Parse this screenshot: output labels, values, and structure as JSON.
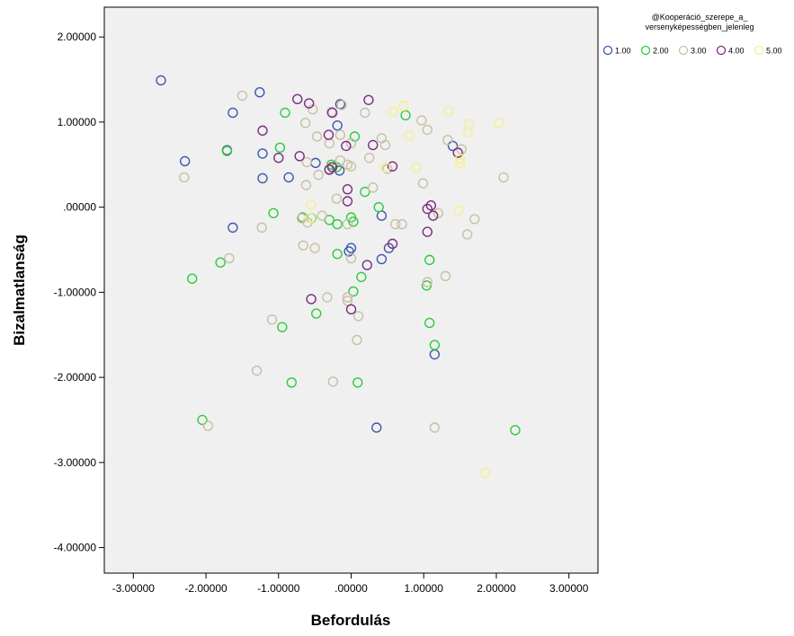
{
  "chart_data": {
    "type": "scatter",
    "xlabel": "Befordulás",
    "ylabel": "Bizalmatlanság",
    "xlim": [
      -3.4,
      3.4
    ],
    "ylim": [
      -4.3,
      2.35
    ],
    "xticks": [
      -3,
      -2,
      -1,
      0,
      1,
      2,
      3
    ],
    "xtick_labels": [
      "-3.00000",
      "-2.00000",
      "-1.00000",
      ".00000",
      "1.00000",
      "2.00000",
      "3.00000"
    ],
    "yticks": [
      2,
      1,
      0,
      -1,
      -2,
      -3,
      -4
    ],
    "ytick_labels": [
      "2.00000",
      "1.00000",
      ".00000",
      "-1.00000",
      "-2.00000",
      "-3.00000",
      "-4.00000"
    ],
    "grid": false,
    "background": "#f0f0f0",
    "legend": {
      "title_lines": [
        "@Kooperáció_szerepe_a_",
        "versenyképességben_jelenleg"
      ],
      "placement": "top-right"
    },
    "series": [
      {
        "name": "1.00",
        "color": "#3d58b0",
        "points": [
          [
            -2.62,
            1.49
          ],
          [
            -1.26,
            1.35
          ],
          [
            -1.63,
            1.11
          ],
          [
            -1.71,
            0.67
          ],
          [
            -2.29,
            0.54
          ],
          [
            -1.22,
            0.63
          ],
          [
            -1.22,
            0.34
          ],
          [
            -0.86,
            0.35
          ],
          [
            -0.49,
            0.52
          ],
          [
            -0.15,
            1.21
          ],
          [
            -0.19,
            0.96
          ],
          [
            -0.16,
            0.43
          ],
          [
            -1.63,
            -0.24
          ],
          [
            0.42,
            -0.1
          ],
          [
            0.0,
            -0.48
          ],
          [
            -0.03,
            -0.52
          ],
          [
            0.52,
            -0.48
          ],
          [
            0.42,
            -0.61
          ],
          [
            1.4,
            0.72
          ],
          [
            1.15,
            -1.73
          ],
          [
            0.35,
            -2.59
          ]
        ]
      },
      {
        "name": "2.00",
        "color": "#2ecc40",
        "points": [
          [
            -1.71,
            0.66
          ],
          [
            -0.91,
            1.11
          ],
          [
            -0.98,
            0.7
          ],
          [
            -1.07,
            -0.07
          ],
          [
            -0.67,
            -0.12
          ],
          [
            -0.55,
            -0.13
          ],
          [
            -0.3,
            -0.15
          ],
          [
            -0.27,
            0.5
          ],
          [
            -0.2,
            0.47
          ],
          [
            -0.19,
            -0.2
          ],
          [
            0.0,
            -0.12
          ],
          [
            0.03,
            -0.17
          ],
          [
            0.05,
            0.83
          ],
          [
            0.19,
            0.18
          ],
          [
            0.38,
            0.0
          ],
          [
            0.75,
            1.08
          ],
          [
            -0.48,
            -1.25
          ],
          [
            -0.95,
            -1.41
          ],
          [
            -0.19,
            -0.55
          ],
          [
            0.14,
            -0.82
          ],
          [
            0.03,
            -0.99
          ],
          [
            -1.8,
            -0.65
          ],
          [
            -2.19,
            -0.84
          ],
          [
            1.08,
            -0.62
          ],
          [
            1.04,
            -0.92
          ],
          [
            1.08,
            -1.36
          ],
          [
            1.15,
            -1.62
          ],
          [
            -2.05,
            -2.5
          ],
          [
            -0.82,
            -2.06
          ],
          [
            0.09,
            -2.06
          ],
          [
            2.26,
            -2.62
          ]
        ]
      },
      {
        "name": "3.00",
        "color": "#c8c0a4",
        "points": [
          [
            -1.5,
            1.31
          ],
          [
            -0.63,
            0.99
          ],
          [
            -0.53,
            1.15
          ],
          [
            -0.27,
            1.12
          ],
          [
            -0.13,
            1.2
          ],
          [
            0.19,
            1.11
          ],
          [
            0.42,
            0.81
          ],
          [
            0.47,
            0.73
          ],
          [
            -0.47,
            0.83
          ],
          [
            -0.3,
            0.75
          ],
          [
            -0.15,
            0.85
          ],
          [
            0.0,
            0.75
          ],
          [
            -0.05,
            0.5
          ],
          [
            -0.61,
            0.53
          ],
          [
            -0.45,
            0.38
          ],
          [
            -0.3,
            0.45
          ],
          [
            -0.15,
            0.55
          ],
          [
            0.0,
            0.48
          ],
          [
            0.25,
            0.58
          ],
          [
            0.3,
            0.23
          ],
          [
            0.5,
            0.45
          ],
          [
            0.97,
            1.02
          ],
          [
            1.05,
            0.91
          ],
          [
            1.33,
            0.79
          ],
          [
            1.52,
            0.68
          ],
          [
            -2.3,
            0.35
          ],
          [
            2.1,
            0.35
          ],
          [
            0.99,
            0.28
          ],
          [
            -0.62,
            0.26
          ],
          [
            -0.2,
            0.1
          ],
          [
            -0.4,
            -0.1
          ],
          [
            -0.68,
            -0.13
          ],
          [
            -0.6,
            -0.18
          ],
          [
            -0.05,
            -0.2
          ],
          [
            0.61,
            -0.2
          ],
          [
            0.7,
            -0.2
          ],
          [
            1.2,
            -0.07
          ],
          [
            1.7,
            -0.14
          ],
          [
            1.6,
            -0.32
          ],
          [
            -1.23,
            -0.24
          ],
          [
            -0.66,
            -0.45
          ],
          [
            -0.5,
            -0.48
          ],
          [
            0.0,
            -0.6
          ],
          [
            -1.68,
            -0.6
          ],
          [
            -0.33,
            -1.06
          ],
          [
            -0.05,
            -1.06
          ],
          [
            -0.05,
            -1.1
          ],
          [
            0.1,
            -1.28
          ],
          [
            -1.09,
            -1.32
          ],
          [
            1.05,
            -0.88
          ],
          [
            1.3,
            -0.81
          ],
          [
            0.08,
            -1.56
          ],
          [
            -1.3,
            -1.92
          ],
          [
            -0.25,
            -2.05
          ],
          [
            1.15,
            -2.59
          ],
          [
            -1.97,
            -2.57
          ]
        ]
      },
      {
        "name": "4.00",
        "color": "#7b2d80",
        "points": [
          [
            -0.74,
            1.27
          ],
          [
            -0.58,
            1.22
          ],
          [
            0.24,
            1.26
          ],
          [
            -1.22,
            0.9
          ],
          [
            -0.26,
            1.11
          ],
          [
            -0.31,
            0.85
          ],
          [
            0.3,
            0.73
          ],
          [
            -0.07,
            0.72
          ],
          [
            -1.0,
            0.58
          ],
          [
            -0.71,
            0.6
          ],
          [
            -0.3,
            0.44
          ],
          [
            -0.26,
            0.47
          ],
          [
            -0.05,
            0.21
          ],
          [
            0.57,
            0.48
          ],
          [
            -0.05,
            0.07
          ],
          [
            1.1,
            0.02
          ],
          [
            1.05,
            -0.02
          ],
          [
            1.13,
            -0.1
          ],
          [
            1.47,
            0.64
          ],
          [
            1.05,
            -0.29
          ],
          [
            0.57,
            -0.43
          ],
          [
            0.22,
            -0.68
          ],
          [
            -0.55,
            -1.08
          ],
          [
            0.0,
            -1.2
          ]
        ]
      },
      {
        "name": "5.00",
        "color": "#f5f08a",
        "points": [
          [
            0.72,
            1.19
          ],
          [
            0.58,
            1.12
          ],
          [
            1.34,
            1.13
          ],
          [
            1.62,
            0.98
          ],
          [
            2.04,
            0.99
          ],
          [
            1.61,
            0.88
          ],
          [
            0.8,
            0.84
          ],
          [
            1.5,
            0.57
          ],
          [
            1.5,
            0.52
          ],
          [
            0.47,
            0.47
          ],
          [
            0.9,
            0.47
          ],
          [
            -0.55,
            0.03
          ],
          [
            -0.56,
            -0.13
          ],
          [
            1.48,
            -0.04
          ],
          [
            1.85,
            -3.12
          ]
        ]
      }
    ]
  }
}
